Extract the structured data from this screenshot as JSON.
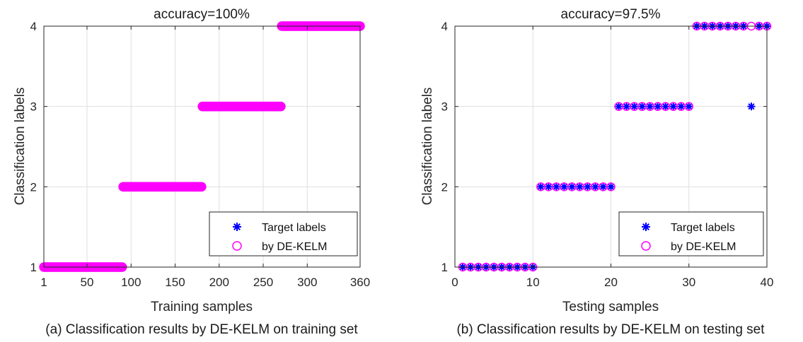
{
  "colors": {
    "target": "#0000ff",
    "predicted": "#ff00ff"
  },
  "chart_data": [
    {
      "type": "scatter",
      "title": "accuracy=100%",
      "xlabel": "Training samples",
      "ylabel": "Classification labels",
      "caption": "(a) Classification results by DE-KELM on training set",
      "xlim": [
        1,
        360
      ],
      "ylim": [
        1,
        4
      ],
      "xticks": [
        1,
        50,
        100,
        150,
        200,
        250,
        300,
        360
      ],
      "yticks": [
        1,
        2,
        3,
        4
      ],
      "grid": true,
      "legend": {
        "position": "bottom-right",
        "entries": [
          "Target labels",
          "by DE-KELM"
        ]
      },
      "series": [
        {
          "name": "Target labels",
          "marker": "asterisk",
          "segments": [
            {
              "from": 1,
              "to": 90,
              "y": 1
            },
            {
              "from": 91,
              "to": 180,
              "y": 2
            },
            {
              "from": 181,
              "to": 270,
              "y": 3
            },
            {
              "from": 271,
              "to": 360,
              "y": 4
            }
          ]
        },
        {
          "name": "by DE-KELM",
          "marker": "circle",
          "segments": [
            {
              "from": 1,
              "to": 90,
              "y": 1
            },
            {
              "from": 91,
              "to": 180,
              "y": 2
            },
            {
              "from": 181,
              "to": 270,
              "y": 3
            },
            {
              "from": 271,
              "to": 360,
              "y": 4
            }
          ]
        }
      ]
    },
    {
      "type": "scatter",
      "title": "accuracy=97.5%",
      "xlabel": "Testing samples",
      "ylabel": "Classification labels",
      "caption": "(b) Classification results by DE-KELM on testing set",
      "xlim": [
        0,
        40
      ],
      "ylim": [
        1,
        4
      ],
      "xticks": [
        0,
        10,
        20,
        30,
        40
      ],
      "yticks": [
        1,
        2,
        3,
        4
      ],
      "grid": true,
      "legend": {
        "position": "bottom-right",
        "entries": [
          "Target labels",
          "by DE-KELM"
        ]
      },
      "series": [
        {
          "name": "Target labels",
          "marker": "asterisk",
          "x": [
            1,
            2,
            3,
            4,
            5,
            6,
            7,
            8,
            9,
            10,
            11,
            12,
            13,
            14,
            15,
            16,
            17,
            18,
            19,
            20,
            21,
            22,
            23,
            24,
            25,
            26,
            27,
            28,
            29,
            30,
            31,
            32,
            33,
            34,
            35,
            36,
            37,
            38,
            39,
            40
          ],
          "y": [
            1,
            1,
            1,
            1,
            1,
            1,
            1,
            1,
            1,
            1,
            2,
            2,
            2,
            2,
            2,
            2,
            2,
            2,
            2,
            2,
            3,
            3,
            3,
            3,
            3,
            3,
            3,
            3,
            3,
            3,
            4,
            4,
            4,
            4,
            4,
            4,
            4,
            3,
            4,
            4
          ]
        },
        {
          "name": "by DE-KELM",
          "marker": "circle",
          "x": [
            1,
            2,
            3,
            4,
            5,
            6,
            7,
            8,
            9,
            10,
            11,
            12,
            13,
            14,
            15,
            16,
            17,
            18,
            19,
            20,
            21,
            22,
            23,
            24,
            25,
            26,
            27,
            28,
            29,
            30,
            31,
            32,
            33,
            34,
            35,
            36,
            37,
            38,
            39,
            40
          ],
          "y": [
            1,
            1,
            1,
            1,
            1,
            1,
            1,
            1,
            1,
            1,
            2,
            2,
            2,
            2,
            2,
            2,
            2,
            2,
            2,
            2,
            3,
            3,
            3,
            3,
            3,
            3,
            3,
            3,
            3,
            3,
            4,
            4,
            4,
            4,
            4,
            4,
            4,
            4,
            4,
            4
          ]
        }
      ]
    }
  ]
}
